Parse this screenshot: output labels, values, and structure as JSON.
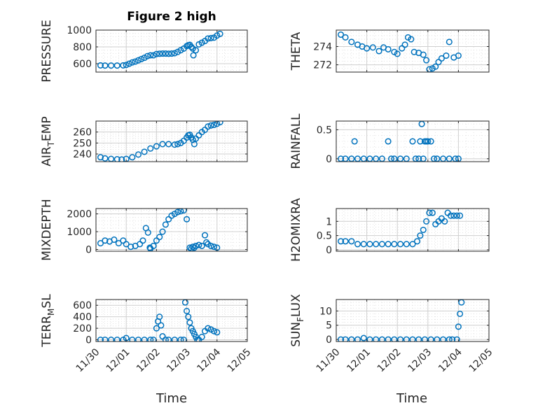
{
  "figure": {
    "title": "Figure 2 high",
    "xlabel_left": "Time",
    "xlabel_right": "Time",
    "x_tick_labels": [
      "11/30",
      "12/01",
      "12/02",
      "12/03",
      "12/04",
      "12/05"
    ]
  },
  "colors": {
    "marker": "#0072BD",
    "axis": "#262626",
    "grid": "#dcdcdc"
  },
  "chart_data": [
    {
      "type": "scatter",
      "ylabel": "PRESSURE",
      "ylim": [
        500,
        1000
      ],
      "yticks": [
        600,
        800,
        1000
      ],
      "ytick_labels": [
        "600",
        "800",
        "1000"
      ],
      "x": [
        0.15,
        0.3,
        0.5,
        0.7,
        0.9,
        1.0,
        1.1,
        1.2,
        1.3,
        1.4,
        1.5,
        1.6,
        1.7,
        1.8,
        1.9,
        2.0,
        2.1,
        2.2,
        2.3,
        2.4,
        2.5,
        2.6,
        2.7,
        2.8,
        2.9,
        3.0,
        3.05,
        3.1,
        3.15,
        3.2,
        3.22,
        3.3,
        3.4,
        3.5,
        3.6,
        3.7,
        3.8,
        3.9,
        4.0,
        4.1
      ],
      "y": [
        580,
        578,
        578,
        578,
        580,
        585,
        600,
        615,
        625,
        640,
        655,
        670,
        690,
        700,
        700,
        715,
        718,
        720,
        720,
        718,
        720,
        725,
        740,
        760,
        780,
        810,
        820,
        825,
        800,
        780,
        700,
        760,
        830,
        850,
        870,
        900,
        905,
        910,
        935,
        955
      ]
    },
    {
      "type": "scatter",
      "ylabel": "THETA",
      "ylim": [
        271.2,
        275.8
      ],
      "yticks": [
        272,
        274
      ],
      "ytick_labels": [
        "272",
        "274"
      ],
      "x": [
        0.15,
        0.3,
        0.5,
        0.7,
        0.85,
        1.0,
        1.2,
        1.4,
        1.55,
        1.7,
        1.9,
        2.0,
        2.15,
        2.25,
        2.35,
        2.45,
        2.55,
        2.7,
        2.85,
        2.95,
        3.05,
        3.15,
        3.25,
        3.35,
        3.45,
        3.6,
        3.7,
        3.85,
        4.0
      ],
      "y": [
        275.3,
        275.0,
        274.5,
        274.2,
        274.0,
        273.8,
        273.9,
        273.5,
        273.9,
        273.7,
        273.4,
        273.2,
        273.8,
        274.2,
        275.0,
        274.8,
        273.4,
        273.3,
        273.1,
        272.5,
        271.5,
        271.6,
        271.8,
        272.3,
        272.7,
        273.0,
        274.5,
        272.8,
        273.0
      ]
    },
    {
      "type": "scatter",
      "ylabel": "AIR_TEMP",
      "ylim": [
        233,
        270
      ],
      "yticks": [
        240,
        250,
        260
      ],
      "ytick_labels": [
        "240",
        "250",
        "260"
      ],
      "x": [
        0.15,
        0.3,
        0.5,
        0.7,
        0.85,
        1.0,
        1.2,
        1.4,
        1.6,
        1.8,
        2.0,
        2.2,
        2.4,
        2.6,
        2.7,
        2.8,
        2.9,
        3.0,
        3.05,
        3.1,
        3.15,
        3.2,
        3.25,
        3.3,
        3.4,
        3.5,
        3.6,
        3.7,
        3.8,
        3.9,
        4.0,
        4.1
      ],
      "y": [
        237,
        236,
        235.5,
        235.2,
        235,
        235.5,
        237,
        239.5,
        242,
        245,
        247,
        249,
        249,
        248.5,
        249,
        250,
        252,
        255,
        257,
        257.5,
        255,
        253,
        249,
        254,
        257,
        260,
        262,
        265,
        266,
        266.5,
        267.5,
        269
      ]
    },
    {
      "type": "scatter",
      "ylabel": "RAINFALL",
      "ylim": [
        -0.05,
        0.65
      ],
      "yticks": [
        0,
        0.5
      ],
      "ytick_labels": [
        "0",
        "0.5"
      ],
      "x": [
        0.15,
        0.3,
        0.5,
        0.6,
        0.7,
        0.9,
        1.1,
        1.3,
        1.5,
        1.7,
        1.8,
        1.9,
        2.1,
        2.3,
        2.5,
        2.6,
        2.7,
        2.75,
        2.8,
        2.85,
        2.9,
        2.95,
        3.0,
        3.1,
        3.2,
        3.3,
        3.5,
        3.7,
        3.9,
        4.0
      ],
      "y": [
        0,
        0,
        0,
        0.3,
        0,
        0,
        0,
        0,
        0,
        0.3,
        0,
        0,
        0,
        0,
        0.3,
        0,
        0,
        0.3,
        0.6,
        0,
        0.3,
        0.3,
        0.3,
        0.3,
        0,
        0,
        0,
        0,
        0,
        0
      ]
    },
    {
      "type": "scatter",
      "ylabel": "MIXDEPTH",
      "ylim": [
        -100,
        2300
      ],
      "yticks": [
        0,
        1000,
        2000
      ],
      "ytick_labels": [
        "0",
        "1000",
        "2000"
      ],
      "x": [
        0.15,
        0.3,
        0.45,
        0.6,
        0.75,
        0.9,
        1.0,
        1.15,
        1.3,
        1.45,
        1.55,
        1.65,
        1.72,
        1.78,
        1.8,
        1.9,
        2.0,
        2.1,
        2.2,
        2.3,
        2.4,
        2.5,
        2.6,
        2.7,
        2.8,
        2.9,
        3.0,
        3.1,
        3.15,
        3.2,
        3.25,
        3.3,
        3.4,
        3.5,
        3.6,
        3.65,
        3.7,
        3.8,
        3.9,
        4.0
      ],
      "y": [
        350,
        500,
        450,
        550,
        350,
        500,
        300,
        150,
        200,
        300,
        500,
        1200,
        950,
        100,
        50,
        200,
        500,
        700,
        1000,
        1400,
        1700,
        1900,
        2000,
        2100,
        2150,
        2200,
        1700,
        100,
        50,
        150,
        100,
        200,
        250,
        200,
        800,
        400,
        300,
        200,
        150,
        100
      ]
    },
    {
      "type": "scatter",
      "ylabel": "H2OMIXRA",
      "ylim": [
        -0.05,
        1.45
      ],
      "yticks": [
        0,
        0.5,
        1
      ],
      "ytick_labels": [
        "0",
        "0.5",
        "1"
      ],
      "x": [
        0.15,
        0.3,
        0.5,
        0.7,
        0.9,
        1.1,
        1.3,
        1.5,
        1.7,
        1.9,
        2.1,
        2.3,
        2.5,
        2.65,
        2.75,
        2.85,
        2.95,
        3.05,
        3.15,
        3.25,
        3.35,
        3.45,
        3.55,
        3.65,
        3.75,
        3.85,
        3.95,
        4.05
      ],
      "y": [
        0.3,
        0.3,
        0.3,
        0.2,
        0.2,
        0.2,
        0.2,
        0.2,
        0.2,
        0.2,
        0.2,
        0.2,
        0.2,
        0.3,
        0.5,
        0.7,
        1.0,
        1.3,
        1.3,
        0.9,
        1.0,
        1.1,
        1.0,
        1.3,
        1.2,
        1.2,
        1.2,
        1.2
      ]
    },
    {
      "type": "scatter",
      "ylabel": "TERR_MSL",
      "ylim": [
        -30,
        700
      ],
      "yticks": [
        0,
        200,
        400,
        600
      ],
      "ytick_labels": [
        "0",
        "200",
        "400",
        "600"
      ],
      "x": [
        0.15,
        0.3,
        0.5,
        0.7,
        0.9,
        1.0,
        1.2,
        1.4,
        1.6,
        1.8,
        1.9,
        2.0,
        2.05,
        2.1,
        2.15,
        2.2,
        2.3,
        2.4,
        2.6,
        2.8,
        2.9,
        2.95,
        3.0,
        3.05,
        3.1,
        3.15,
        3.2,
        3.25,
        3.3,
        3.35,
        3.4,
        3.5,
        3.6,
        3.7,
        3.8,
        3.9,
        4.0
      ],
      "y": [
        0,
        0,
        0,
        0,
        0,
        30,
        0,
        0,
        0,
        0,
        0,
        200,
        320,
        400,
        250,
        60,
        0,
        0,
        0,
        0,
        0,
        650,
        500,
        400,
        300,
        200,
        150,
        100,
        50,
        0,
        0,
        50,
        150,
        200,
        180,
        150,
        130
      ]
    },
    {
      "type": "scatter",
      "ylabel": "SUN_FLUX",
      "ylim": [
        -0.7,
        14
      ],
      "yticks": [
        0,
        5,
        10
      ],
      "ytick_labels": [
        "0",
        "5",
        "10"
      ],
      "x": [
        0.15,
        0.3,
        0.5,
        0.7,
        0.9,
        1.1,
        1.3,
        1.5,
        1.7,
        1.9,
        2.1,
        2.3,
        2.5,
        2.7,
        2.9,
        3.1,
        3.3,
        3.5,
        3.7,
        3.8,
        3.95,
        4.0,
        4.05,
        4.1
      ],
      "y": [
        0,
        0,
        0,
        0,
        0.5,
        0,
        0,
        0,
        0,
        0,
        0,
        0,
        0,
        0,
        0,
        0,
        0,
        0,
        0,
        0,
        0,
        4.5,
        9,
        13
      ]
    }
  ]
}
